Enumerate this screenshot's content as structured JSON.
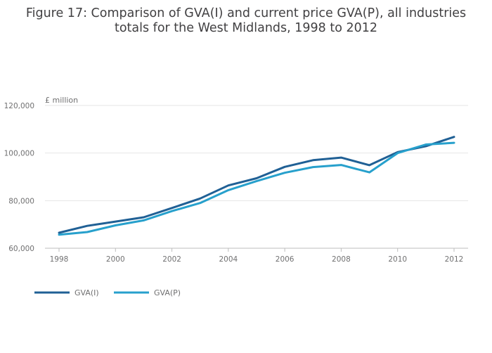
{
  "chart_data": {
    "type": "line",
    "title_lines": [
      "Figure 17: Comparison of GVA(I) and current price GVA(P), all industries",
      "totals for the West Midlands, 1998 to 2012"
    ],
    "ylabel": "£ million",
    "xlabel": "",
    "x": [
      1998,
      1999,
      2000,
      2001,
      2002,
      2003,
      2004,
      2005,
      2006,
      2007,
      2008,
      2009,
      2010,
      2011,
      2012
    ],
    "x_ticks": [
      1998,
      2000,
      2002,
      2004,
      2006,
      2008,
      2010,
      2012
    ],
    "x_tick_labels": [
      "1998",
      "2000",
      "2002",
      "2004",
      "2006",
      "2008",
      "2010",
      "2012"
    ],
    "y_ticks": [
      60000,
      80000,
      100000,
      120000
    ],
    "y_tick_labels": [
      "60,000",
      "80,000",
      "100,000",
      "120,000"
    ],
    "xlim": [
      1998,
      2012
    ],
    "ylim": [
      60000,
      120000
    ],
    "grid": true,
    "legend_position": "bottom-left",
    "series": [
      {
        "name": "GVA(I)",
        "color": "#206095",
        "values": [
          66500,
          69400,
          71200,
          73000,
          76900,
          80900,
          86400,
          89400,
          94200,
          97000,
          98100,
          94900,
          100400,
          102900,
          106800
        ]
      },
      {
        "name": "GVA(P)",
        "color": "#27a0cc",
        "values": [
          65700,
          66800,
          69600,
          71700,
          75600,
          79000,
          84400,
          88200,
          91700,
          94100,
          95000,
          91900,
          100000,
          103600,
          104300
        ]
      }
    ]
  }
}
